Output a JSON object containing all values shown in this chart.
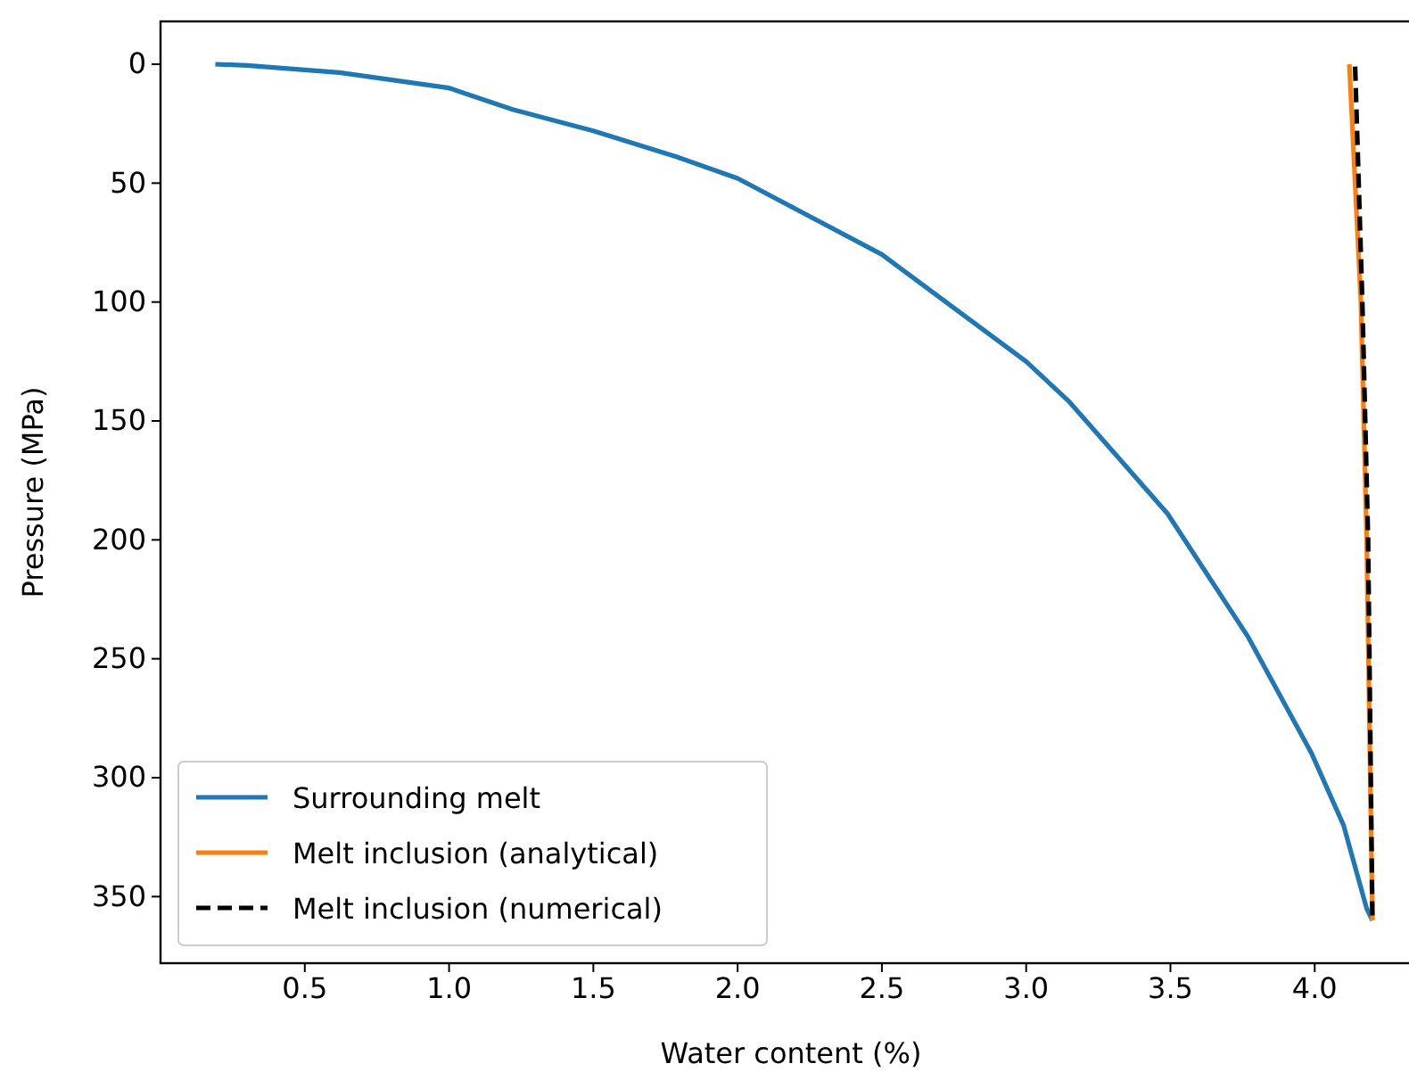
{
  "chart_data": {
    "type": "line",
    "xlabel": "Water content (%)",
    "ylabel": "Pressure (MPa)",
    "xlim": [
      0,
      4.37
    ],
    "xticks": [
      {
        "value": 0.5,
        "label": "0.5"
      },
      {
        "value": 1,
        "label": "1.0"
      },
      {
        "value": 1.5,
        "label": "1.5"
      },
      {
        "value": 2,
        "label": "2.0"
      },
      {
        "value": 2.5,
        "label": "2.5"
      },
      {
        "value": 3,
        "label": "3.0"
      },
      {
        "value": 3.5,
        "label": "3.5"
      },
      {
        "value": 4,
        "label": "4.0"
      }
    ],
    "ylim": [
      378,
      -18
    ],
    "yticks": [
      0,
      50,
      100,
      150,
      200,
      250,
      300,
      350
    ],
    "legend": "bottom left",
    "grid": false,
    "series": [
      {
        "name": "Surrounding melt",
        "color": "#1f77b4",
        "line_style": "solid",
        "x": [
          0.19,
          0.3,
          0.62,
          1.0,
          1.22,
          1.5,
          1.79,
          2.0,
          2.5,
          3.0,
          3.15,
          3.49,
          3.77,
          3.99,
          4.1,
          4.18,
          4.2
        ],
        "values": [
          0,
          0.5,
          3.5,
          10,
          19,
          28,
          39,
          48,
          80,
          125,
          142,
          189,
          241,
          290,
          320,
          355,
          360
        ]
      },
      {
        "name": "Melt inclusion (analytical)",
        "color": "#ff7f0e",
        "line_style": "solid",
        "x": [
          4.12,
          4.16,
          4.18,
          4.2
        ],
        "values": [
          0,
          100,
          200,
          360
        ]
      },
      {
        "name": "Melt inclusion (numerical)",
        "color": "#000000",
        "line_style": "dashed",
        "x": [
          4.14,
          4.165,
          4.185,
          4.2
        ],
        "values": [
          1,
          100,
          200,
          360
        ]
      }
    ]
  }
}
